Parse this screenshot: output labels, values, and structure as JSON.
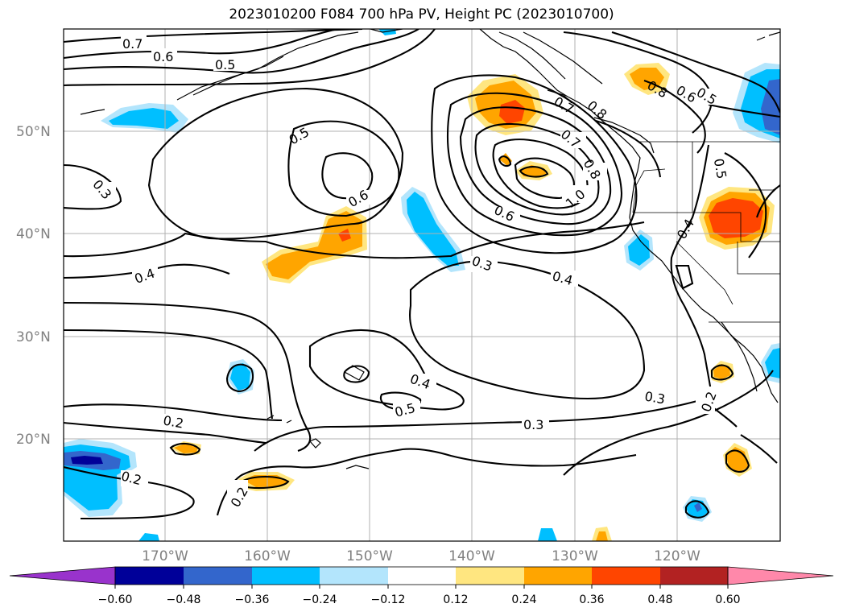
{
  "title": "2023010200 F084 700 hPa PV, Height PC (2023010700)",
  "map": {
    "lat_labels": [
      "50°N",
      "40°N",
      "30°N",
      "20°N"
    ],
    "lon_labels": [
      "170°W",
      "160°W",
      "150°W",
      "140°W",
      "130°W",
      "120°W"
    ],
    "contour_labels": [
      {
        "id": "c07a",
        "text": "0.7"
      },
      {
        "id": "c06a",
        "text": "0.6"
      },
      {
        "id": "c05a",
        "text": "0.5"
      },
      {
        "id": "c05b",
        "text": "0.5"
      },
      {
        "id": "c06b",
        "text": "0.6"
      },
      {
        "id": "c03a",
        "text": "0.3"
      },
      {
        "id": "c04a",
        "text": "0.4"
      },
      {
        "id": "c06c",
        "text": "0.6"
      },
      {
        "id": "c07b",
        "text": "0.7"
      },
      {
        "id": "c08a",
        "text": "0.8"
      },
      {
        "id": "c10a",
        "text": "1.0"
      },
      {
        "id": "c07c",
        "text": "0.7"
      },
      {
        "id": "c08b",
        "text": "0.8"
      },
      {
        "id": "c08c",
        "text": "0.8"
      },
      {
        "id": "c06d",
        "text": "0.6"
      },
      {
        "id": "c05c",
        "text": "0.5"
      },
      {
        "id": "c05d",
        "text": "0.5"
      },
      {
        "id": "c04b",
        "text": "0.4"
      },
      {
        "id": "c03b",
        "text": "0.3"
      },
      {
        "id": "c04c",
        "text": "0.4"
      },
      {
        "id": "c04d",
        "text": "0.4"
      },
      {
        "id": "c05e",
        "text": "0.5"
      },
      {
        "id": "c02a",
        "text": "0.2"
      },
      {
        "id": "c02b",
        "text": "0.2"
      },
      {
        "id": "c02c",
        "text": "0.2"
      },
      {
        "id": "c03c",
        "text": "0.3"
      },
      {
        "id": "c03d",
        "text": "0.3"
      },
      {
        "id": "c02d",
        "text": "0.2"
      }
    ]
  },
  "colorbar": {
    "colors": [
      "#9933cc",
      "#000099",
      "#3366cc",
      "#00bfff",
      "#b3e5fc",
      "#ffffff",
      "#ffe680",
      "#ffa500",
      "#ff4500",
      "#b22222",
      "#ff88aa"
    ],
    "tick_labels": [
      "−0.60",
      "−0.48",
      "−0.36",
      "−0.24",
      "−0.12",
      "0.12",
      "0.24",
      "0.36",
      "0.48",
      "0.60"
    ]
  },
  "colors": {
    "neg_light": "#b3e5fc",
    "neg_mid": "#00bfff",
    "neg_strong": "#3366cc",
    "pos_light": "#ffe680",
    "pos_mid": "#ffa500",
    "pos_strong": "#ff4500"
  }
}
